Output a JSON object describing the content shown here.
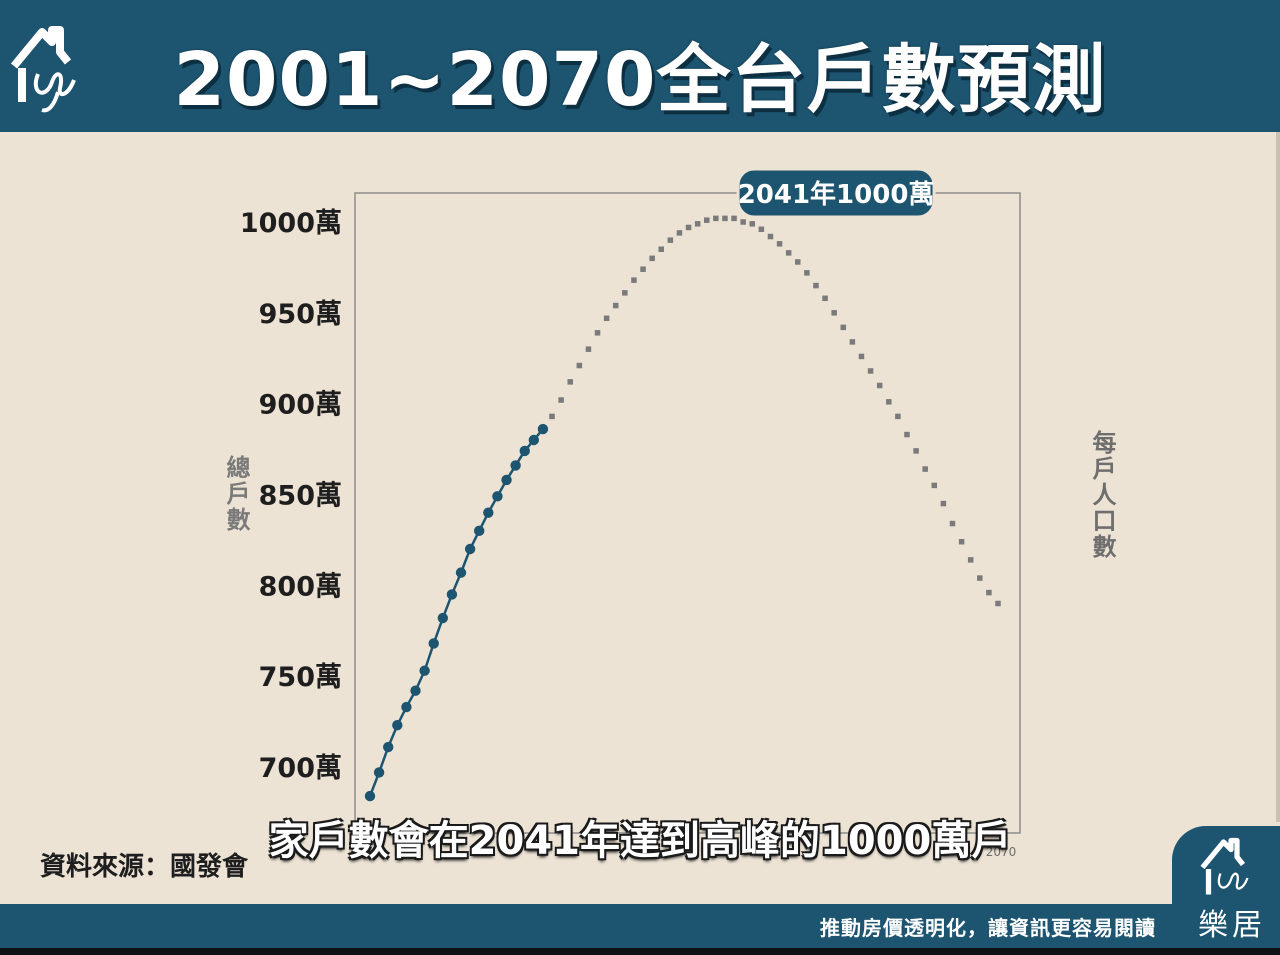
{
  "header": {
    "title": "2001~2070全台戶數預測",
    "logo_icon": "house-signature-logo-icon"
  },
  "chart_data": {
    "type": "line",
    "ylabel": "總戶數",
    "y2label": "每戶人口數",
    "ylim": [
      680,
      1020
    ],
    "xlim": [
      2000,
      2072
    ],
    "y_ticks": [
      700,
      750,
      800,
      850,
      900,
      950,
      1000
    ],
    "y_tick_labels": [
      "700萬",
      "750萬",
      "800萬",
      "850萬",
      "900萬",
      "950萬",
      "1000萬"
    ],
    "x_tick_labels_visible": [
      "2070"
    ],
    "grid": false,
    "colors": {
      "actual": "#1d5470",
      "projected": "#7a7a7a",
      "callout_bg": "#1d5470"
    },
    "series": [
      {
        "name": "actual",
        "style": "solid-dots",
        "x": [
          2001,
          2002,
          2003,
          2004,
          2005,
          2006,
          2007,
          2008,
          2009,
          2010,
          2011,
          2012,
          2013,
          2014,
          2015,
          2016,
          2017,
          2018,
          2019,
          2020
        ],
        "values": [
          684,
          697,
          711,
          723,
          733,
          742,
          753,
          768,
          782,
          795,
          807,
          820,
          830,
          840,
          849,
          858,
          866,
          874,
          880,
          886
        ]
      },
      {
        "name": "projected",
        "style": "dotted-squares",
        "x": [
          2021,
          2022,
          2023,
          2024,
          2025,
          2026,
          2027,
          2028,
          2029,
          2030,
          2031,
          2032,
          2033,
          2034,
          2035,
          2036,
          2037,
          2038,
          2039,
          2040,
          2041,
          2042,
          2043,
          2044,
          2045,
          2046,
          2047,
          2048,
          2049,
          2050,
          2051,
          2052,
          2053,
          2054,
          2055,
          2056,
          2057,
          2058,
          2059,
          2060,
          2061,
          2062,
          2063,
          2064,
          2065,
          2066,
          2067,
          2068,
          2069,
          2070
        ],
        "values": [
          893,
          902,
          912,
          921,
          930,
          939,
          947,
          954,
          961,
          968,
          974,
          980,
          985,
          990,
          994,
          997,
          999,
          1001,
          1002,
          1002,
          1002,
          1000,
          999,
          996,
          992,
          988,
          983,
          978,
          972,
          965,
          958,
          950,
          942,
          934,
          926,
          918,
          910,
          901,
          893,
          883,
          874,
          864,
          855,
          845,
          834,
          824,
          814,
          804,
          796,
          790
        ]
      }
    ],
    "annotation": {
      "text": "2041年1000萬",
      "x": 2041,
      "y": 1002
    }
  },
  "source": "資料來源：國發會",
  "subtitle": "家戶數會在2041年達到高峰的1000萬戶",
  "footer": {
    "slogan": "推動房價透明化，讓資訊更容易閱讀",
    "brand": "樂居",
    "brand_icon": "house-signature-logo-icon"
  }
}
